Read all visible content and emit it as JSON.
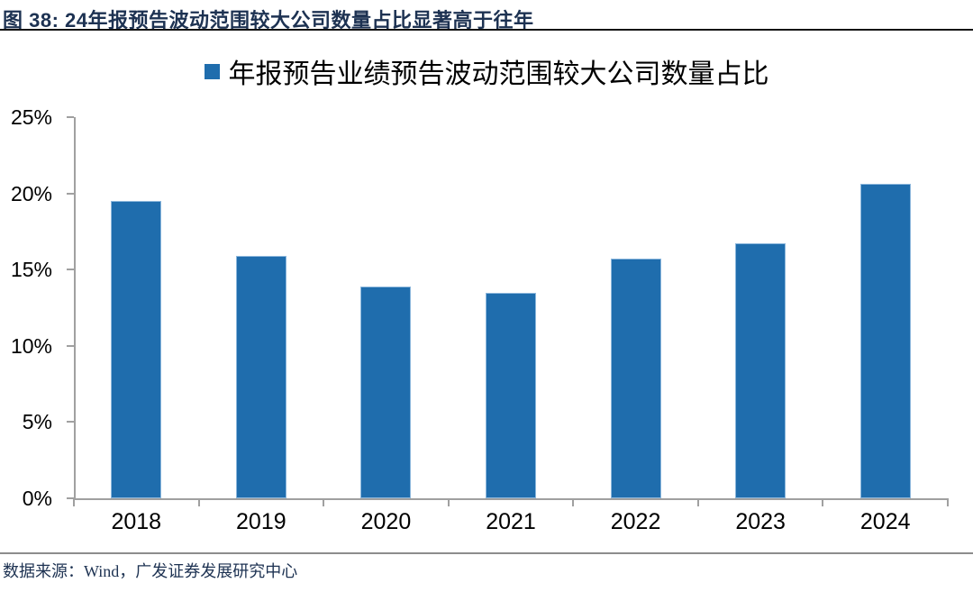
{
  "figure": {
    "title": "图 38: 24年报预告波动范围较大公司数量占比显著高于往年",
    "source": "数据来源：Wind，广发证券发展研究中心"
  },
  "chart_data": {
    "type": "bar",
    "title": "年报预告业绩预告波动范围较大公司数量占比",
    "legend": [
      "年报预告业绩预告波动范围较大公司数量占比"
    ],
    "legend_position": "top-center",
    "categories": [
      "2018",
      "2019",
      "2020",
      "2021",
      "2022",
      "2023",
      "2024"
    ],
    "values": [
      19.5,
      15.9,
      13.9,
      13.5,
      15.7,
      16.7,
      20.6
    ],
    "unit": "%",
    "ylim": [
      0,
      25
    ],
    "ytick_step": 5,
    "ytick_labels": [
      "0%",
      "5%",
      "10%",
      "15%",
      "20%",
      "25%"
    ],
    "grid": false,
    "bar_color": "#1F6DAD"
  },
  "colors": {
    "accent_blue": "#1F6DAD",
    "header_text": "#1D3252",
    "top_rule": "#141414",
    "bottom_rule": "#8C8C8C",
    "axis_gray": "#A0A0A0",
    "label_black": "#000000"
  }
}
